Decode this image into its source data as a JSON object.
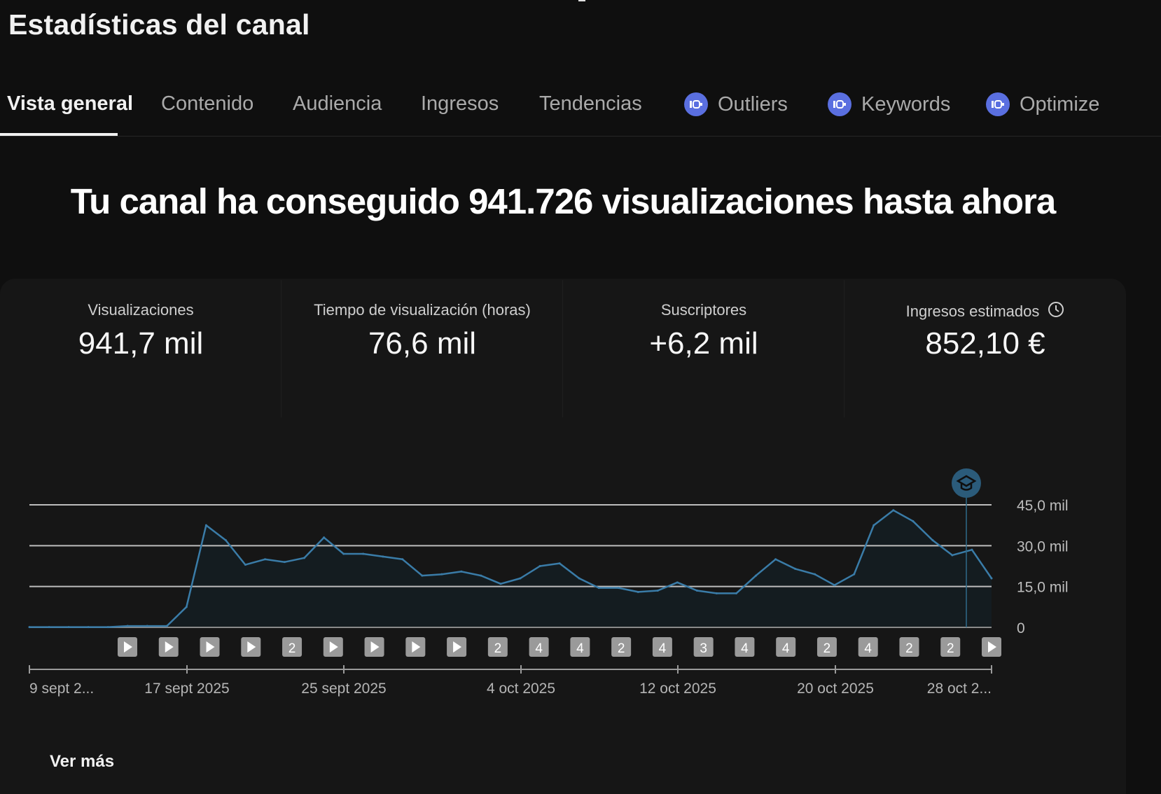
{
  "page_title": "Estadísticas del canal",
  "tabs": [
    {
      "label": "Vista general",
      "active": true
    },
    {
      "label": "Contenido"
    },
    {
      "label": "Audiencia"
    },
    {
      "label": "Ingresos"
    },
    {
      "label": "Tendencias"
    },
    {
      "label": "Outliers",
      "icon": "vidiq-extension-icon"
    },
    {
      "label": "Keywords",
      "icon": "vidiq-extension-icon"
    },
    {
      "label": "Optimize",
      "icon": "vidiq-extension-icon"
    }
  ],
  "headline": "Tu canal ha conseguido 941.726 visualizaciones hasta ahora",
  "metrics": [
    {
      "label": "Visualizaciones",
      "value": "941,7 mil"
    },
    {
      "label": "Tiempo de visualización (horas)",
      "value": "76,6 mil"
    },
    {
      "label": "Suscriptores",
      "value": "+6,2 mil"
    },
    {
      "label": "Ingresos estimados",
      "value": "852,10 €",
      "icon": "clock-icon"
    }
  ],
  "chart_data": {
    "type": "area",
    "series": [
      {
        "values": [
          0.1,
          0.1,
          0.1,
          0.1,
          0.1,
          0.5,
          0.5,
          0.5,
          7.5,
          37.5,
          32,
          23,
          25,
          24,
          25.5,
          33,
          27,
          27,
          26,
          25,
          19,
          19.5,
          20.5,
          19,
          16,
          18,
          22.5,
          23.5,
          18,
          14.5,
          14.5,
          13,
          13.5,
          16.5,
          13.5,
          12.5,
          12.5,
          19,
          25,
          21.5,
          19.5,
          15.5,
          19.5,
          37.5,
          43,
          39,
          32,
          26.5,
          28.5,
          18
        ]
      }
    ],
    "x_tick_labels": [
      "9 sept 2...",
      "17 sept 2025",
      "25 sept 2025",
      "4 oct 2025",
      "12 oct 2025",
      "20 oct 2025",
      "28 oct 2..."
    ],
    "y_tick_labels": [
      "0",
      "15,0 mil",
      "30,0 mil",
      "45,0 mil"
    ],
    "y_ticks": [
      0,
      15,
      30,
      45
    ],
    "ylim": [
      0,
      45
    ],
    "grid": true,
    "color": "#3a7ca8",
    "annotation_icon": "graduation-cap-icon",
    "markers": [
      {
        "label": "play"
      },
      {
        "label": "play"
      },
      {
        "label": "play"
      },
      {
        "label": "play"
      },
      {
        "label": "2"
      },
      {
        "label": "play"
      },
      {
        "label": "play"
      },
      {
        "label": "play"
      },
      {
        "label": "play"
      },
      {
        "label": "2"
      },
      {
        "label": "4"
      },
      {
        "label": "4"
      },
      {
        "label": "2"
      },
      {
        "label": "4"
      },
      {
        "label": "3"
      },
      {
        "label": "4"
      },
      {
        "label": "4"
      },
      {
        "label": "2"
      },
      {
        "label": "4"
      },
      {
        "label": "2"
      },
      {
        "label": "2"
      },
      {
        "label": "play"
      }
    ]
  },
  "ver_mas": "Ver más",
  "colors": {
    "background": "#0f0f0f",
    "card": "#161616",
    "accent_line": "#3a7ca8",
    "extension_icon": "#5a6fe0"
  }
}
